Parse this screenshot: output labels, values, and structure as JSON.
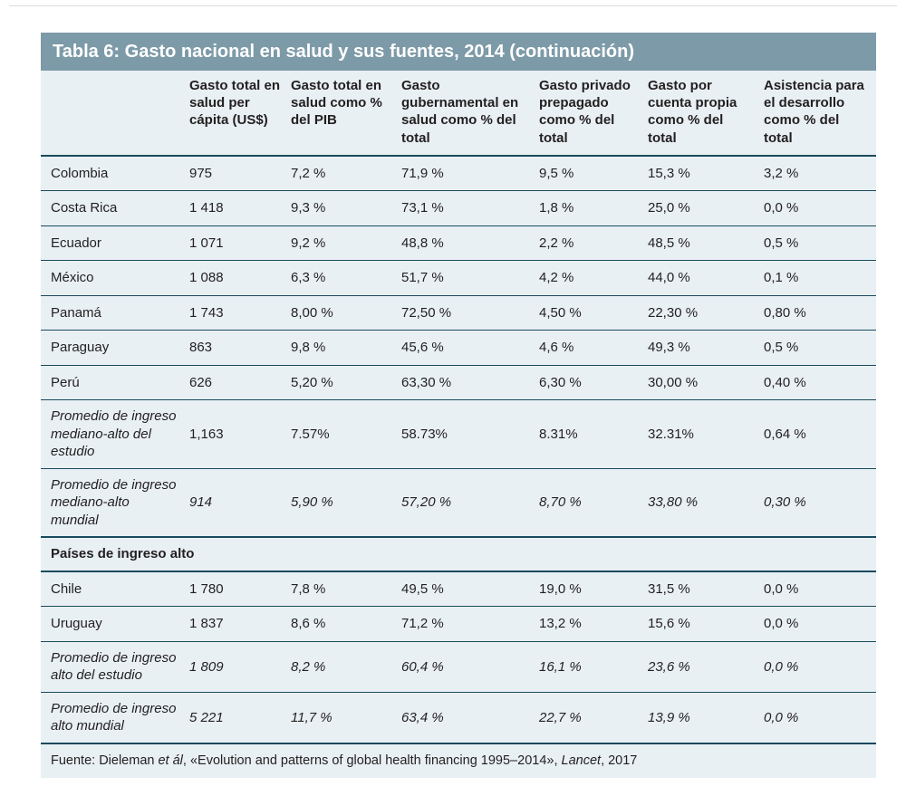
{
  "colors": {
    "title_bg": "#7d9aa8",
    "table_bg": "#e8f0f4",
    "rule": "#1b4a5e",
    "title_text": "#ffffff",
    "text": "#231f20"
  },
  "table": {
    "title": "Tabla 6: Gasto nacional en salud y sus fuentes, 2014 (continuación)",
    "columns": [
      "",
      "Gasto total en salud per cápita (US$)",
      "Gasto total en salud como % del PIB",
      "Gasto gubernamental en salud como % del total",
      "Gasto privado prepagado como % del total",
      "Gasto por cuenta propia como % del total",
      "Asistencia para el desarrollo como % del total"
    ],
    "rows": [
      {
        "type": "data",
        "label": "Colombia",
        "values": [
          "975",
          "7,2 %",
          "71,9 %",
          "9,5 %",
          "15,3 %",
          "3,2 %"
        ],
        "label_italic": false,
        "values_italic": false
      },
      {
        "type": "data",
        "label": "Costa Rica",
        "values": [
          "1 418",
          "9,3 %",
          "73,1 %",
          "1,8 %",
          "25,0 %",
          "0,0 %"
        ],
        "label_italic": false,
        "values_italic": false
      },
      {
        "type": "data",
        "label": "Ecuador",
        "values": [
          "1 071",
          "9,2 %",
          "48,8 %",
          "2,2 %",
          "48,5 %",
          "0,5 %"
        ],
        "label_italic": false,
        "values_italic": false
      },
      {
        "type": "data",
        "label": "México",
        "values": [
          "1 088",
          "6,3 %",
          "51,7 %",
          "4,2 %",
          "44,0 %",
          "0,1 %"
        ],
        "label_italic": false,
        "values_italic": false
      },
      {
        "type": "data",
        "label": "Panamá",
        "values": [
          "1 743",
          "8,00 %",
          "72,50 %",
          "4,50 %",
          "22,30 %",
          "0,80 %"
        ],
        "label_italic": false,
        "values_italic": false
      },
      {
        "type": "data",
        "label": "Paraguay",
        "values": [
          "863",
          "9,8 %",
          "45,6 %",
          "4,6 %",
          "49,3 %",
          "0,5 %"
        ],
        "label_italic": false,
        "values_italic": false
      },
      {
        "type": "data",
        "label": "Perú",
        "values": [
          "626",
          "5,20 %",
          "63,30 %",
          "6,30 %",
          "30,00 %",
          "0,40 %"
        ],
        "label_italic": false,
        "values_italic": false
      },
      {
        "type": "data",
        "label": "Promedio de ingreso mediano-alto del estudio",
        "values": [
          "1,163",
          "7.57%",
          "58.73%",
          "8.31%",
          "32.31%",
          "0,64 %"
        ],
        "label_italic": true,
        "values_italic": false
      },
      {
        "type": "data",
        "label": "Promedio de ingreso mediano-alto mundial",
        "values": [
          "914",
          "5,90 %",
          "57,20 %",
          "8,70 %",
          "33,80 %",
          "0,30 %"
        ],
        "label_italic": true,
        "values_italic": true
      },
      {
        "type": "section",
        "label": "Países de ingreso alto"
      },
      {
        "type": "data",
        "label": "Chile",
        "values": [
          "1 780",
          "7,8 %",
          "49,5 %",
          "19,0 %",
          "31,5 %",
          "0,0 %"
        ],
        "label_italic": false,
        "values_italic": false
      },
      {
        "type": "data",
        "label": "Uruguay",
        "values": [
          "1 837",
          "8,6 %",
          "71,2 %",
          "13,2 %",
          "15,6 %",
          "0,0 %"
        ],
        "label_italic": false,
        "values_italic": false
      },
      {
        "type": "data",
        "label": "Promedio de ingreso alto del estudio",
        "values": [
          "1 809",
          "8,2 %",
          "60,4 %",
          "16,1 %",
          "23,6 %",
          "0,0 %"
        ],
        "label_italic": true,
        "values_italic": true
      },
      {
        "type": "data",
        "label": "Promedio de ingreso alto mundial",
        "values": [
          "5 221",
          "11,7 %",
          "63,4 %",
          "22,7 %",
          "13,9 %",
          "0,0 %"
        ],
        "label_italic": true,
        "values_italic": true
      }
    ],
    "source_parts": [
      {
        "text": "Fuente: Dieleman ",
        "italic": false
      },
      {
        "text": "et ál",
        "italic": true
      },
      {
        "text": ", «Evolution and patterns of global health financing 1995–2014», ",
        "italic": false
      },
      {
        "text": "Lancet",
        "italic": true
      },
      {
        "text": ", 2017",
        "italic": false
      }
    ]
  }
}
